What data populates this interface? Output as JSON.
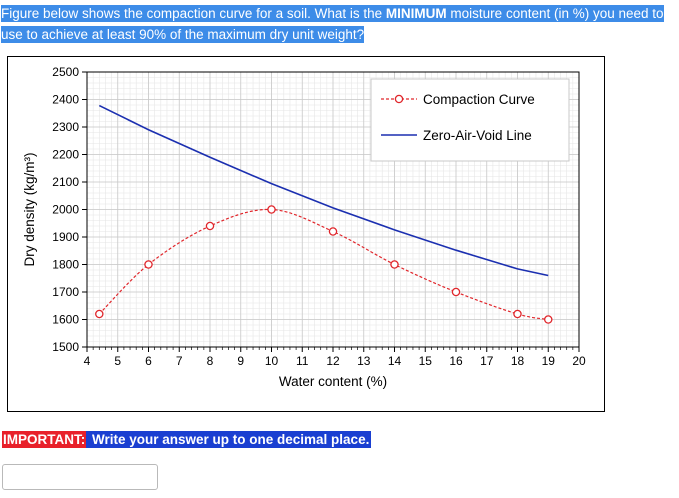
{
  "question": {
    "part1": "Figure below shows the compaction curve for a soil. What is the ",
    "emphasis": "MINIMUM",
    "part2": " moisture content (in %) you need to use to achieve at least 90% of the maximum dry unit weight?"
  },
  "notice": {
    "label": "IMPORTANT:",
    "text": " Write your answer up to one decimal place."
  },
  "answer_input": {
    "value": "",
    "placeholder": ""
  },
  "chart_data": {
    "type": "line",
    "xlabel": "Water content (%)",
    "ylabel": "Dry density (kg/m³)",
    "xlim": [
      4,
      20
    ],
    "ylim": [
      1500,
      2500
    ],
    "xticks": [
      "4",
      "5",
      "6",
      "7",
      "8",
      "9",
      "10",
      "11",
      "12",
      "13",
      "14",
      "15",
      "16",
      "17",
      "18",
      "19",
      "20"
    ],
    "yticks": [
      "1500",
      "1600",
      "1700",
      "1800",
      "1900",
      "2000",
      "2100",
      "2200",
      "2300",
      "2400",
      "2500"
    ],
    "grid": true,
    "legend_position": "top-right",
    "series": [
      {
        "name": "Compaction Curve",
        "style": "dashed-markers",
        "color": "#e0262b",
        "x": [
          4.4,
          6,
          8,
          10,
          12,
          14,
          16,
          18,
          19
        ],
        "y": [
          1620,
          1800,
          1940,
          2000,
          1920,
          1800,
          1700,
          1620,
          1600
        ]
      },
      {
        "name": "Zero-Air-Void Line",
        "style": "solid",
        "color": "#1b2fb0",
        "x": [
          4.4,
          6,
          8,
          10,
          12,
          14,
          16,
          18,
          19
        ],
        "y": [
          2378,
          2290,
          2190,
          2094,
          2006,
          1926,
          1852,
          1784,
          1760
        ]
      }
    ]
  }
}
